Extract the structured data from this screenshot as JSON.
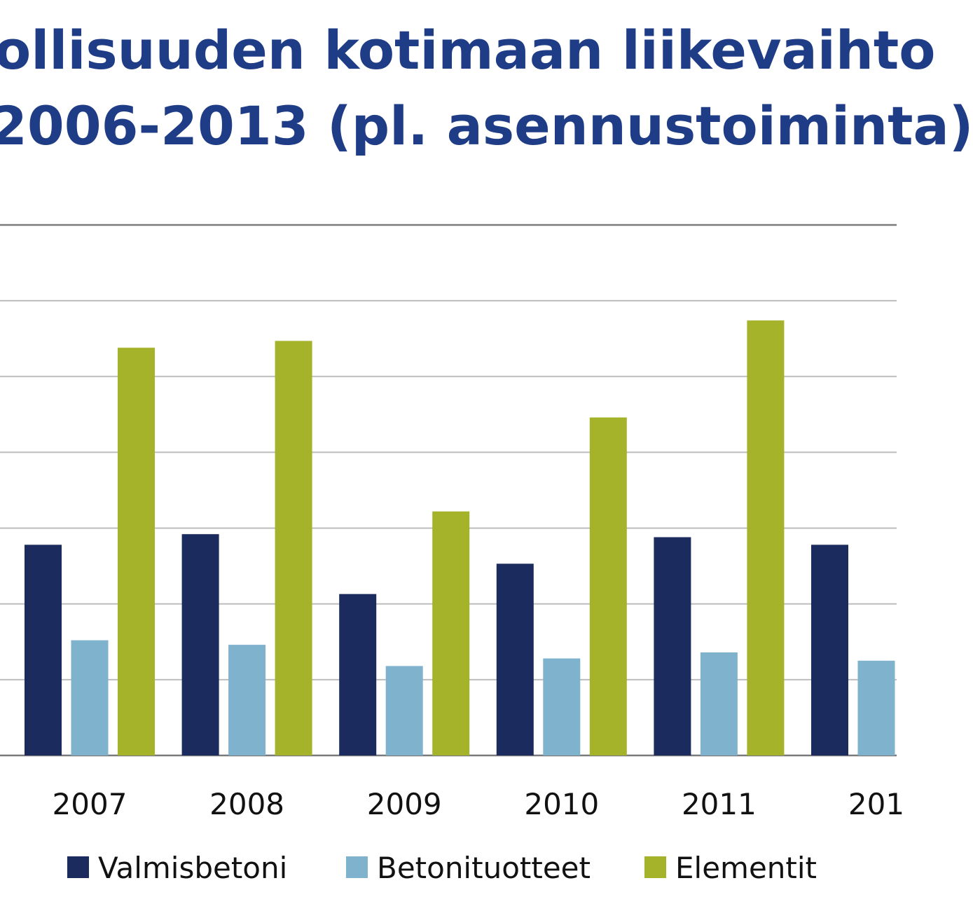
{
  "chart_data": {
    "type": "bar",
    "title_lines": [
      "ollisuuden kotimaan liikevaihto",
      "2006-2013 (pl. asennustoiminta)"
    ],
    "categories": [
      "2007",
      "2008",
      "2009",
      "2010",
      "2011",
      "201"
    ],
    "series": [
      {
        "name": "Valmisbetoni",
        "color": "#1c2b5e",
        "values": [
          2.78,
          2.92,
          2.13,
          2.53,
          2.88,
          2.78
        ]
      },
      {
        "name": "Betonituotteet",
        "color": "#7fb2cc",
        "values": [
          1.52,
          1.46,
          1.18,
          1.28,
          1.36,
          1.25
        ]
      },
      {
        "name": "Elementit",
        "color": "#a4b32a",
        "values": [
          5.38,
          5.47,
          3.22,
          4.46,
          5.74,
          null
        ]
      }
    ],
    "ylim": [
      0,
      7
    ],
    "grid": true,
    "legend_position": "bottom"
  }
}
